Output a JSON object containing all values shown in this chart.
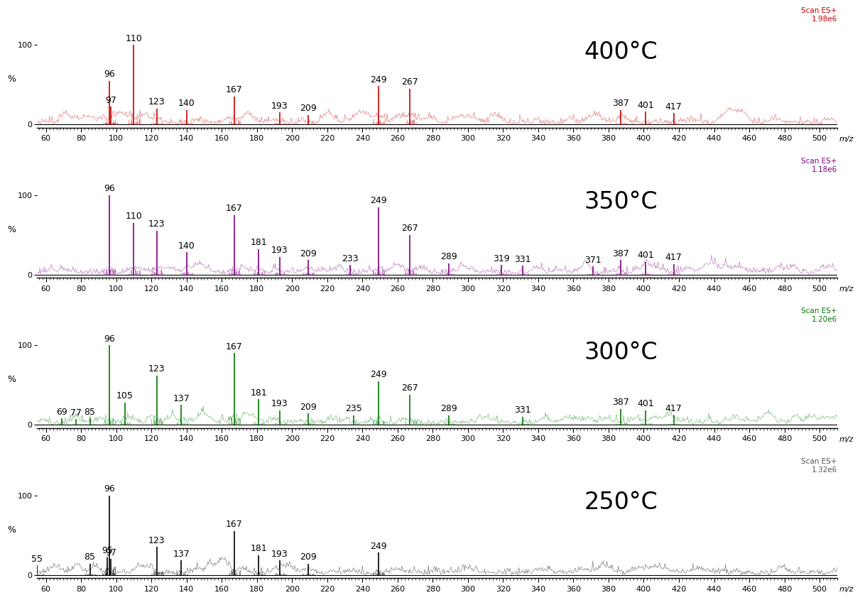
{
  "panels": [
    {
      "temp": "400°C",
      "color": "#cc0000",
      "scan_label": "Scan ES+\n1.98e6",
      "scan_color": "#cc0000",
      "peaks": [
        {
          "mz": 96,
          "intensity": 55,
          "label": "96"
        },
        {
          "mz": 97,
          "intensity": 22,
          "label": "97"
        },
        {
          "mz": 110,
          "intensity": 100,
          "label": "110"
        },
        {
          "mz": 123,
          "intensity": 20,
          "label": "123"
        },
        {
          "mz": 140,
          "intensity": 18,
          "label": "140"
        },
        {
          "mz": 167,
          "intensity": 35,
          "label": "167"
        },
        {
          "mz": 193,
          "intensity": 15,
          "label": "193"
        },
        {
          "mz": 209,
          "intensity": 12,
          "label": "209"
        },
        {
          "mz": 249,
          "intensity": 48,
          "label": "249"
        },
        {
          "mz": 267,
          "intensity": 45,
          "label": "267"
        },
        {
          "mz": 387,
          "intensity": 18,
          "label": "387"
        },
        {
          "mz": 401,
          "intensity": 16,
          "label": "401"
        },
        {
          "mz": 417,
          "intensity": 14,
          "label": "417"
        }
      ]
    },
    {
      "temp": "350°C",
      "color": "#800080",
      "scan_label": "Scan ES+\n1.18e6",
      "scan_color": "#800080",
      "peaks": [
        {
          "mz": 96,
          "intensity": 100,
          "label": "96"
        },
        {
          "mz": 110,
          "intensity": 65,
          "label": "110"
        },
        {
          "mz": 123,
          "intensity": 55,
          "label": "123"
        },
        {
          "mz": 140,
          "intensity": 28,
          "label": "140"
        },
        {
          "mz": 167,
          "intensity": 75,
          "label": "167"
        },
        {
          "mz": 181,
          "intensity": 32,
          "label": "181"
        },
        {
          "mz": 193,
          "intensity": 22,
          "label": "193"
        },
        {
          "mz": 209,
          "intensity": 18,
          "label": "209"
        },
        {
          "mz": 233,
          "intensity": 12,
          "label": "233"
        },
        {
          "mz": 249,
          "intensity": 85,
          "label": "249"
        },
        {
          "mz": 267,
          "intensity": 50,
          "label": "267"
        },
        {
          "mz": 289,
          "intensity": 14,
          "label": "289"
        },
        {
          "mz": 319,
          "intensity": 12,
          "label": "319"
        },
        {
          "mz": 331,
          "intensity": 11,
          "label": "331"
        },
        {
          "mz": 371,
          "intensity": 10,
          "label": "371"
        },
        {
          "mz": 387,
          "intensity": 18,
          "label": "387"
        },
        {
          "mz": 401,
          "intensity": 16,
          "label": "401"
        },
        {
          "mz": 417,
          "intensity": 13,
          "label": "417"
        }
      ]
    },
    {
      "temp": "300°C",
      "color": "#007700",
      "scan_label": "Scan ES+\n1.20e6",
      "scan_color": "#007700",
      "peaks": [
        {
          "mz": 69,
          "intensity": 8,
          "label": "69"
        },
        {
          "mz": 77,
          "intensity": 7,
          "label": "77"
        },
        {
          "mz": 85,
          "intensity": 8,
          "label": "85"
        },
        {
          "mz": 96,
          "intensity": 100,
          "label": "96"
        },
        {
          "mz": 105,
          "intensity": 28,
          "label": "105"
        },
        {
          "mz": 123,
          "intensity": 62,
          "label": "123"
        },
        {
          "mz": 137,
          "intensity": 25,
          "label": "137"
        },
        {
          "mz": 167,
          "intensity": 90,
          "label": "167"
        },
        {
          "mz": 181,
          "intensity": 32,
          "label": "181"
        },
        {
          "mz": 193,
          "intensity": 18,
          "label": "193"
        },
        {
          "mz": 209,
          "intensity": 14,
          "label": "209"
        },
        {
          "mz": 235,
          "intensity": 12,
          "label": "235"
        },
        {
          "mz": 249,
          "intensity": 55,
          "label": "249"
        },
        {
          "mz": 267,
          "intensity": 38,
          "label": "267"
        },
        {
          "mz": 289,
          "intensity": 12,
          "label": "289"
        },
        {
          "mz": 331,
          "intensity": 10,
          "label": "331"
        },
        {
          "mz": 387,
          "intensity": 20,
          "label": "387"
        },
        {
          "mz": 401,
          "intensity": 18,
          "label": "401"
        },
        {
          "mz": 417,
          "intensity": 12,
          "label": "417"
        }
      ]
    },
    {
      "temp": "250°C",
      "color": "#000000",
      "scan_label": "Scan ES+\n1.32e6",
      "scan_color": "#555555",
      "peaks": [
        {
          "mz": 55,
          "intensity": 12,
          "label": "55"
        },
        {
          "mz": 85,
          "intensity": 14,
          "label": "85"
        },
        {
          "mz": 95,
          "intensity": 22,
          "label": "95"
        },
        {
          "mz": 96,
          "intensity": 100,
          "label": "96"
        },
        {
          "mz": 97,
          "intensity": 20,
          "label": "97"
        },
        {
          "mz": 123,
          "intensity": 35,
          "label": "123"
        },
        {
          "mz": 137,
          "intensity": 18,
          "label": "137"
        },
        {
          "mz": 167,
          "intensity": 55,
          "label": "167"
        },
        {
          "mz": 181,
          "intensity": 25,
          "label": "181"
        },
        {
          "mz": 193,
          "intensity": 18,
          "label": "193"
        },
        {
          "mz": 209,
          "intensity": 14,
          "label": "209"
        },
        {
          "mz": 249,
          "intensity": 28,
          "label": "249"
        }
      ]
    }
  ],
  "xlim": [
    55,
    510
  ],
  "xticks": [
    60,
    80,
    100,
    120,
    140,
    160,
    180,
    200,
    220,
    240,
    260,
    280,
    300,
    320,
    340,
    360,
    380,
    400,
    420,
    440,
    460,
    480,
    500
  ],
  "ylabel": "%",
  "xlabel": "m/z",
  "background_color": "#ffffff",
  "noise_scale": 3.5,
  "label_fontsize": 9,
  "temp_fontsize": 24,
  "tick_fontsize": 8
}
